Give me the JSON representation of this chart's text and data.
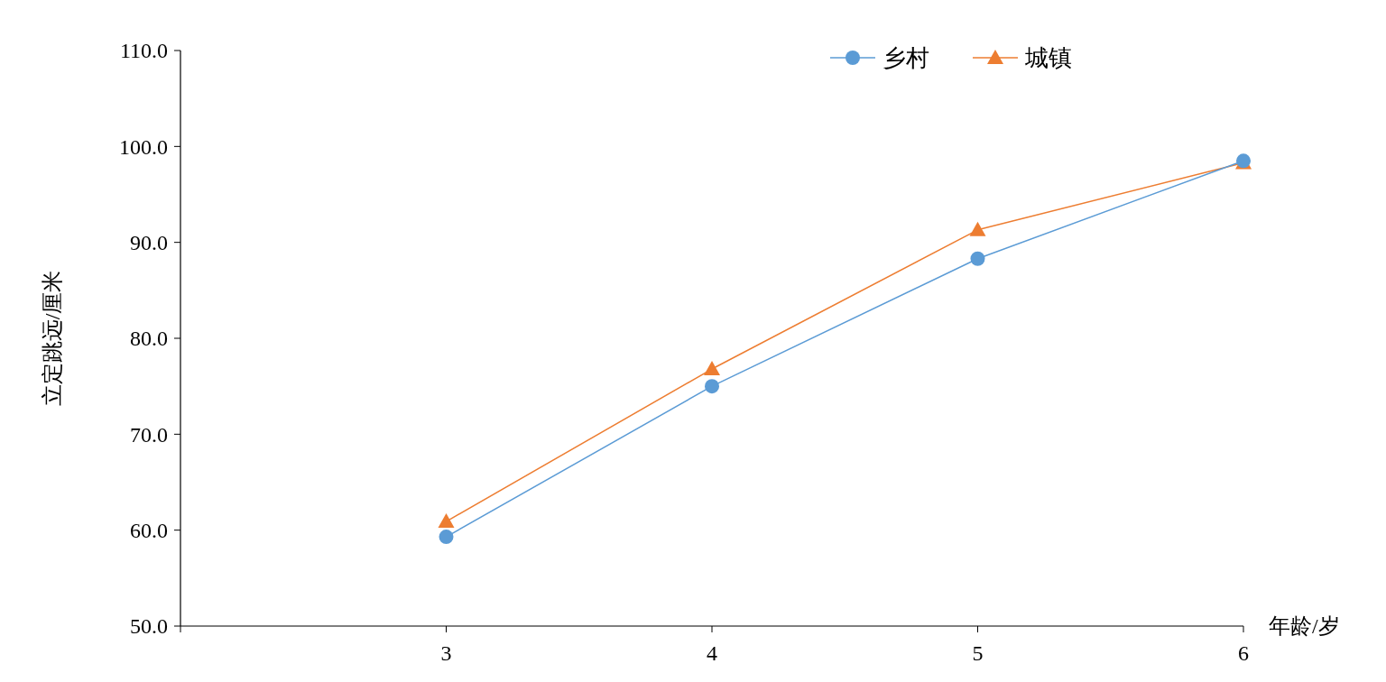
{
  "chart_data": {
    "type": "line",
    "xlabel": "年龄/岁",
    "ylabel": "立定跳远/厘米",
    "x": [
      3,
      4,
      5,
      6
    ],
    "series": [
      {
        "name": "乡村",
        "color": "#5b9bd5",
        "marker": "circle",
        "values": [
          59.3,
          75.0,
          88.3,
          98.5
        ]
      },
      {
        "name": "城镇",
        "color": "#ed7d31",
        "marker": "triangle",
        "values": [
          60.9,
          76.8,
          91.3,
          98.3
        ]
      }
    ],
    "xlim": [
      2,
      6
    ],
    "xticks": [
      {
        "value": 2,
        "label": null
      },
      3,
      4,
      5,
      6
    ],
    "ylim": [
      50,
      110
    ],
    "yticks": [
      {
        "value": 50,
        "label": "50.0"
      },
      {
        "value": 60,
        "label": "60.0"
      },
      {
        "value": 70,
        "label": "70.0"
      },
      {
        "value": 80,
        "label": "80.0"
      },
      {
        "value": 90,
        "label": "90.0"
      },
      {
        "value": 100,
        "label": "100.0"
      },
      {
        "value": 110,
        "label": "110.0"
      }
    ],
    "grid": false,
    "legend": "top right"
  }
}
